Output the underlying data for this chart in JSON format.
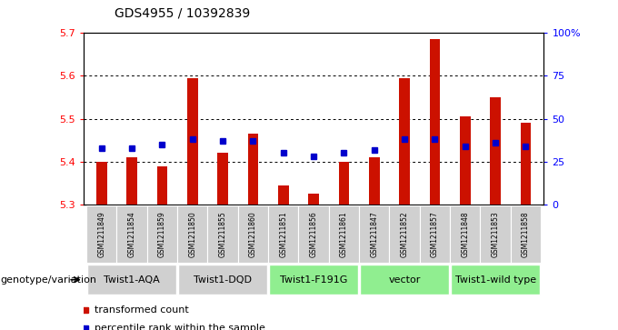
{
  "title": "GDS4955 / 10392839",
  "samples": [
    "GSM1211849",
    "GSM1211854",
    "GSM1211859",
    "GSM1211850",
    "GSM1211855",
    "GSM1211860",
    "GSM1211851",
    "GSM1211856",
    "GSM1211861",
    "GSM1211847",
    "GSM1211852",
    "GSM1211857",
    "GSM1211848",
    "GSM1211853",
    "GSM1211858"
  ],
  "bar_values": [
    5.4,
    5.41,
    5.39,
    5.595,
    5.42,
    5.465,
    5.345,
    5.325,
    5.4,
    5.41,
    5.595,
    5.685,
    5.505,
    5.55,
    5.49
  ],
  "percentile_values": [
    33,
    33,
    35,
    38,
    37,
    37,
    30,
    28,
    30,
    32,
    38,
    38,
    34,
    36,
    34
  ],
  "groups": [
    {
      "label": "Twist1-AQA",
      "start": 0,
      "end": 2,
      "color": "#d0d0d0"
    },
    {
      "label": "Twist1-DQD",
      "start": 3,
      "end": 5,
      "color": "#d0d0d0"
    },
    {
      "label": "Twist1-F191G",
      "start": 6,
      "end": 8,
      "color": "#90ee90"
    },
    {
      "label": "vector",
      "start": 9,
      "end": 11,
      "color": "#90ee90"
    },
    {
      "label": "Twist1-wild type",
      "start": 12,
      "end": 14,
      "color": "#90ee90"
    }
  ],
  "ylim_left": [
    5.3,
    5.7
  ],
  "ylim_right": [
    0,
    100
  ],
  "bar_color": "#cc1100",
  "dot_color": "#0000cc",
  "yticks_left": [
    5.3,
    5.4,
    5.5,
    5.6,
    5.7
  ],
  "yticks_right": [
    0,
    25,
    50,
    75,
    100
  ],
  "ytick_labels_right": [
    "0",
    "25",
    "50",
    "75",
    "100%"
  ],
  "genotype_label": "genotype/variation",
  "legend_items": [
    {
      "color": "#cc1100",
      "label": "transformed count"
    },
    {
      "color": "#0000cc",
      "label": "percentile rank within the sample"
    }
  ],
  "sample_box_color": "#d0d0d0",
  "background_color": "#ffffff"
}
